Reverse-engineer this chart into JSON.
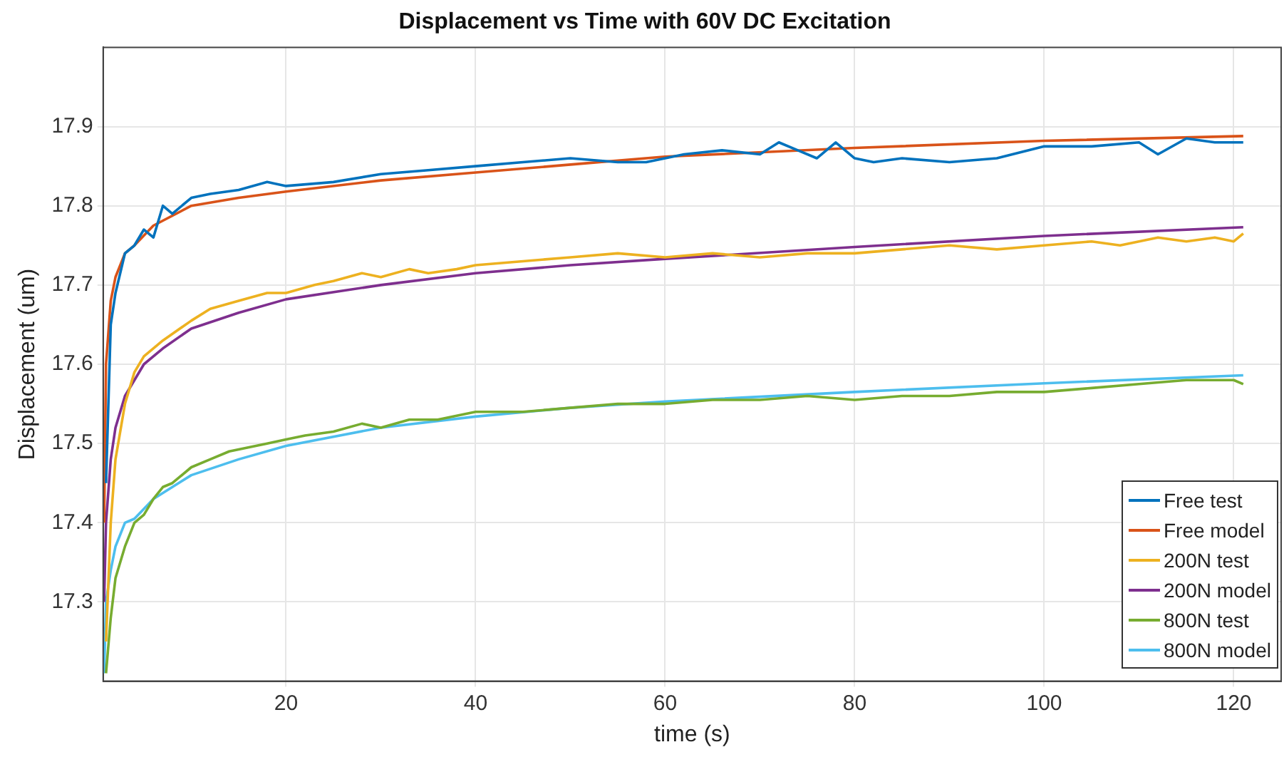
{
  "chart_data": {
    "type": "line",
    "title": "Displacement vs Time with 60V DC Excitation",
    "xlabel": "time (s)",
    "ylabel": "Displacement (um)",
    "xlim": [
      0.7,
      125
    ],
    "xticks": [
      20,
      40,
      60,
      80,
      100,
      120
    ],
    "ylim": [
      17.2,
      18.0
    ],
    "yticks": [
      17.3,
      17.4,
      17.5,
      17.6,
      17.7,
      17.8,
      17.9
    ],
    "grid": true,
    "legend": "bottom right",
    "marker": "none",
    "line_style": "solid",
    "series": [
      {
        "name": "Free test",
        "color": "#0072bd",
        "x": [
          1,
          1.5,
          2,
          3,
          4,
          5,
          6,
          7,
          8,
          10,
          12,
          15,
          18,
          20,
          25,
          30,
          35,
          40,
          45,
          50,
          55,
          58,
          60,
          62,
          66,
          70,
          72,
          74,
          76,
          78,
          80,
          82,
          85,
          90,
          95,
          100,
          105,
          110,
          112,
          115,
          118,
          121
        ],
        "values": [
          17.45,
          17.65,
          17.69,
          17.74,
          17.75,
          17.77,
          17.76,
          17.8,
          17.79,
          17.81,
          17.815,
          17.82,
          17.83,
          17.825,
          17.83,
          17.84,
          17.845,
          17.85,
          17.855,
          17.86,
          17.855,
          17.855,
          17.86,
          17.865,
          17.87,
          17.865,
          17.88,
          17.87,
          17.86,
          17.88,
          17.86,
          17.855,
          17.86,
          17.855,
          17.86,
          17.875,
          17.875,
          17.88,
          17.865,
          17.885,
          17.88,
          17.88
        ]
      },
      {
        "name": "Free model",
        "color": "#d95319",
        "x": [
          0.8,
          1,
          1.5,
          2,
          3,
          4,
          6,
          10,
          15,
          20,
          30,
          40,
          50,
          60,
          80,
          100,
          121
        ],
        "values": [
          17.4,
          17.6,
          17.68,
          17.71,
          17.74,
          17.75,
          17.775,
          17.8,
          17.81,
          17.818,
          17.832,
          17.842,
          17.852,
          17.862,
          17.873,
          17.882,
          17.888
        ]
      },
      {
        "name": "200N test",
        "color": "#edb120",
        "x": [
          1,
          1.5,
          2,
          3,
          4,
          5,
          7,
          10,
          12,
          15,
          18,
          20,
          23,
          25,
          28,
          30,
          33,
          35,
          38,
          40,
          45,
          50,
          55,
          60,
          65,
          70,
          75,
          80,
          85,
          90,
          95,
          100,
          105,
          108,
          112,
          115,
          118,
          120,
          121
        ],
        "values": [
          17.25,
          17.4,
          17.48,
          17.55,
          17.59,
          17.61,
          17.63,
          17.655,
          17.67,
          17.68,
          17.69,
          17.69,
          17.7,
          17.705,
          17.715,
          17.71,
          17.72,
          17.715,
          17.72,
          17.725,
          17.73,
          17.735,
          17.74,
          17.735,
          17.74,
          17.735,
          17.74,
          17.74,
          17.745,
          17.75,
          17.745,
          17.75,
          17.755,
          17.75,
          17.76,
          17.755,
          17.76,
          17.755,
          17.765
        ]
      },
      {
        "name": "200N model",
        "color": "#7e2f8e",
        "x": [
          0.8,
          1,
          1.5,
          2,
          3,
          5,
          7,
          10,
          15,
          20,
          30,
          40,
          50,
          60,
          80,
          100,
          121
        ],
        "values": [
          17.3,
          17.4,
          17.48,
          17.52,
          17.56,
          17.6,
          17.62,
          17.645,
          17.665,
          17.682,
          17.7,
          17.715,
          17.725,
          17.733,
          17.748,
          17.762,
          17.773
        ]
      },
      {
        "name": "800N test",
        "color": "#77ac30",
        "x": [
          1,
          1.5,
          2,
          3,
          4,
          5,
          6,
          7,
          8,
          10,
          12,
          14,
          16,
          18,
          20,
          22,
          25,
          28,
          30,
          33,
          36,
          40,
          45,
          50,
          55,
          60,
          65,
          70,
          75,
          80,
          85,
          90,
          95,
          100,
          105,
          110,
          115,
          120,
          121
        ],
        "values": [
          17.21,
          17.28,
          17.33,
          17.37,
          17.4,
          17.41,
          17.43,
          17.445,
          17.45,
          17.47,
          17.48,
          17.49,
          17.495,
          17.5,
          17.505,
          17.51,
          17.515,
          17.525,
          17.52,
          17.53,
          17.53,
          17.54,
          17.54,
          17.545,
          17.55,
          17.55,
          17.555,
          17.555,
          17.56,
          17.555,
          17.56,
          17.56,
          17.565,
          17.565,
          17.57,
          17.575,
          17.58,
          17.58,
          17.575
        ]
      },
      {
        "name": "800N model",
        "color": "#4dbeee",
        "x": [
          0.8,
          1,
          1.5,
          2,
          3,
          4,
          6,
          8,
          10,
          15,
          20,
          30,
          40,
          50,
          60,
          80,
          100,
          121
        ],
        "values": [
          17.21,
          17.3,
          17.34,
          17.37,
          17.4,
          17.405,
          17.43,
          17.445,
          17.46,
          17.48,
          17.497,
          17.52,
          17.534,
          17.545,
          17.553,
          17.565,
          17.576,
          17.586
        ]
      }
    ]
  }
}
